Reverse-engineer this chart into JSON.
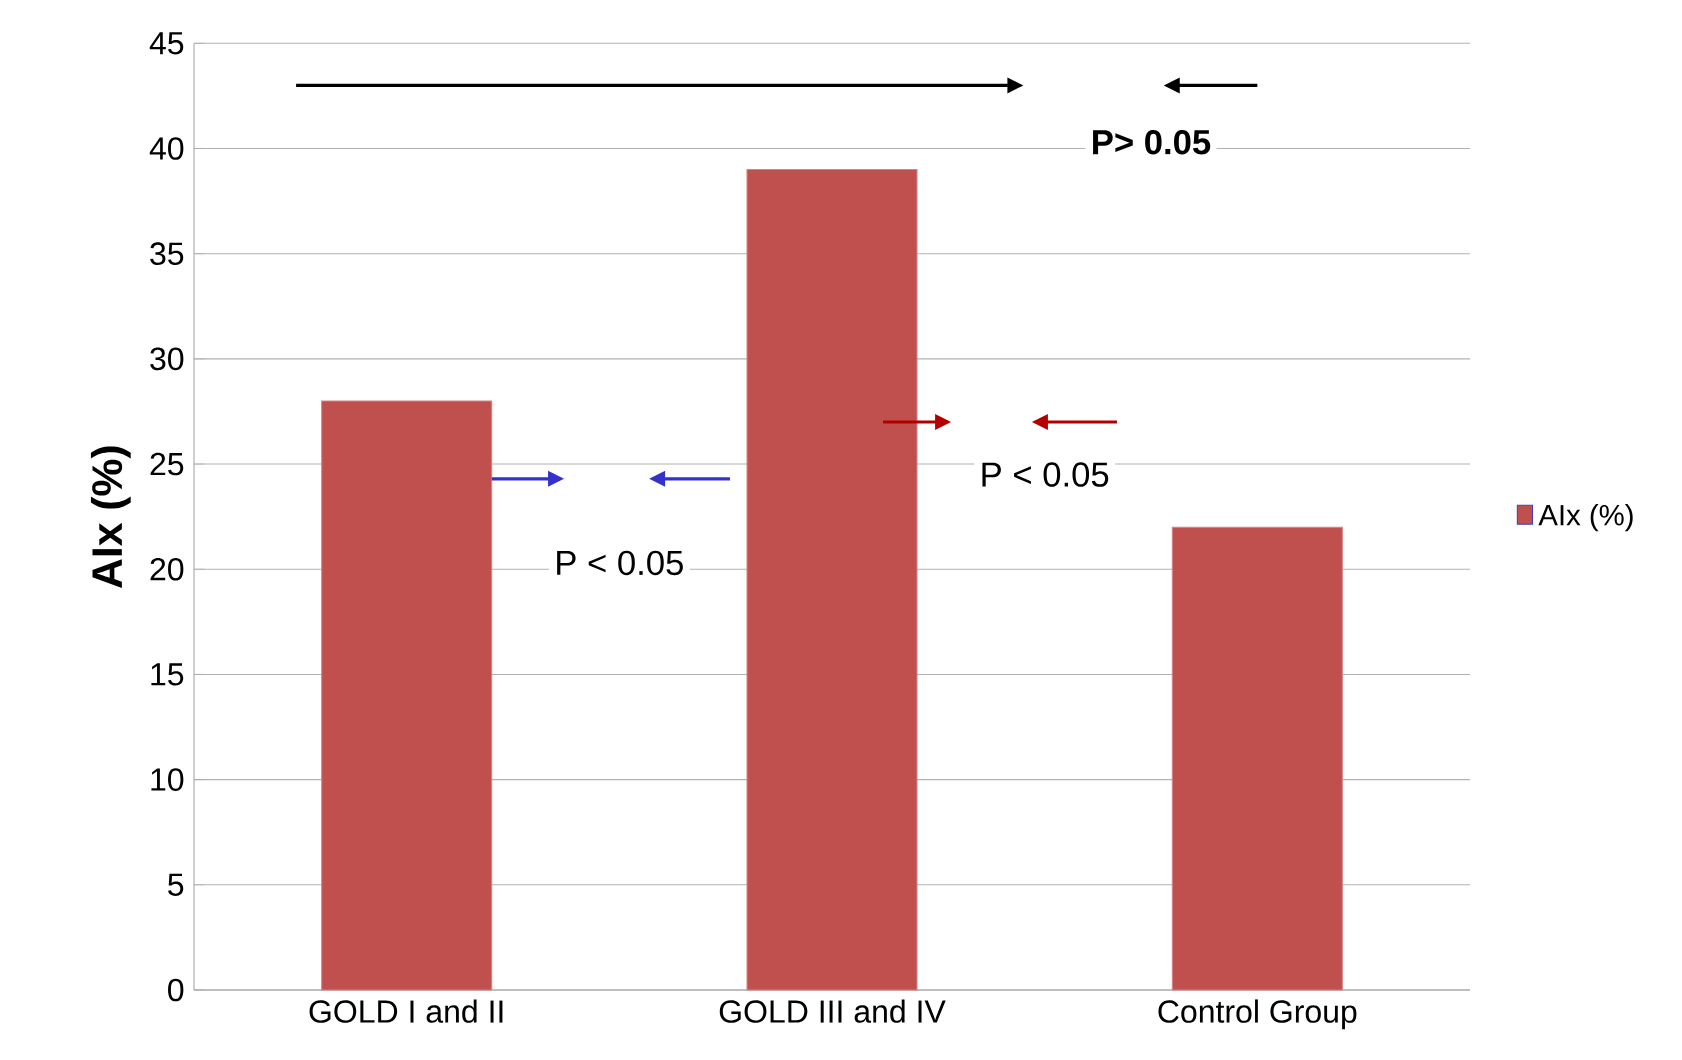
{
  "chart_data": {
    "type": "bar",
    "ylabel": "AIx (%)",
    "categories": [
      "GOLD I and II",
      "GOLD III and IV",
      "Control Group"
    ],
    "series": [
      {
        "name": "AIx (%)",
        "color": "#c0504d",
        "values": [
          28,
          39,
          22
        ]
      }
    ],
    "ylim": [
      0,
      45
    ],
    "yticks": [
      0,
      5,
      10,
      15,
      20,
      25,
      30,
      35,
      40,
      45
    ],
    "grid": "y",
    "legend": "right",
    "annotations": [
      "P> 0.05",
      "P < 0.05",
      "P < 0.05"
    ]
  }
}
